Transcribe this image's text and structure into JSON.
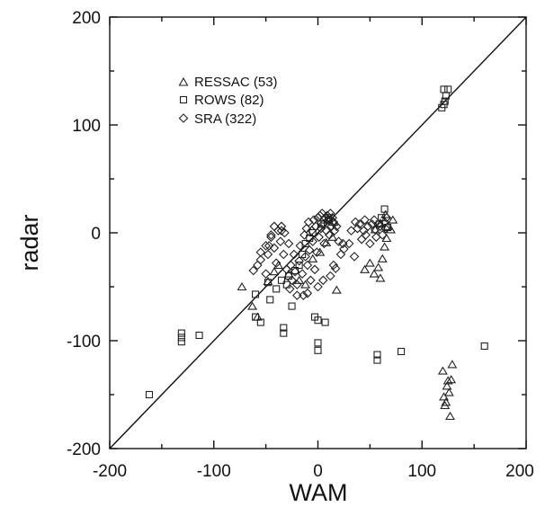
{
  "chart_data": {
    "type": "scatter",
    "title": "",
    "xlabel": "WAM",
    "ylabel": "radar",
    "xlim": [
      -200,
      200
    ],
    "ylim": [
      -200,
      200
    ],
    "xticks": [
      -200,
      -100,
      0,
      100,
      200
    ],
    "yticks": [
      -200,
      -100,
      0,
      100,
      200
    ],
    "x_tick_labels": [
      "-200",
      "-100",
      "0",
      "100",
      "200"
    ],
    "y_tick_labels": [
      "-200",
      "-100",
      "0",
      "100",
      "200"
    ],
    "grid": false,
    "reference_line": "y = x",
    "legend_position": "top-left",
    "series": [
      {
        "name": "RESSAC (53)",
        "marker": "triangle",
        "points": [
          [
            -73,
            -50
          ],
          [
            -63,
            -68
          ],
          [
            -58,
            -78
          ],
          [
            -48,
            -45
          ],
          [
            -42,
            -36
          ],
          [
            -38,
            -30
          ],
          [
            -28,
            -38
          ],
          [
            -18,
            -44
          ],
          [
            -12,
            -48
          ],
          [
            -5,
            -24
          ],
          [
            2,
            -18
          ],
          [
            8,
            -9
          ],
          [
            14,
            -4
          ],
          [
            18,
            -53
          ],
          [
            45,
            -34
          ],
          [
            50,
            -28
          ],
          [
            54,
            -38
          ],
          [
            58,
            -32
          ],
          [
            60,
            -42
          ],
          [
            62,
            -24
          ],
          [
            64,
            -13
          ],
          [
            66,
            -5
          ],
          [
            67,
            6
          ],
          [
            70,
            3
          ],
          [
            72,
            12
          ],
          [
            65,
            17
          ],
          [
            60,
            9
          ],
          [
            55,
            3
          ],
          [
            15,
            10
          ],
          [
            10,
            12
          ],
          [
            120,
            -128
          ],
          [
            121,
            -152
          ],
          [
            122,
            -160
          ],
          [
            123,
            -157
          ],
          [
            124,
            -142
          ],
          [
            125,
            -137
          ],
          [
            126,
            -148
          ],
          [
            127,
            -170
          ],
          [
            128,
            -136
          ],
          [
            129,
            -122
          ]
        ]
      },
      {
        "name": "ROWS (82)",
        "marker": "square",
        "points": [
          [
            -162,
            -150
          ],
          [
            -131,
            -93
          ],
          [
            -131,
            -97
          ],
          [
            -131,
            -101
          ],
          [
            -114,
            -95
          ],
          [
            -60,
            -57
          ],
          [
            -60,
            -78
          ],
          [
            -55,
            -83
          ],
          [
            -48,
            -46
          ],
          [
            -46,
            -62
          ],
          [
            -40,
            -52
          ],
          [
            -35,
            -44
          ],
          [
            -33,
            -88
          ],
          [
            -33,
            -93
          ],
          [
            -30,
            -48
          ],
          [
            -28,
            -40
          ],
          [
            -25,
            -68
          ],
          [
            -22,
            -35
          ],
          [
            -18,
            -30
          ],
          [
            -15,
            -20
          ],
          [
            -12,
            -10
          ],
          [
            -8,
            -5
          ],
          [
            -5,
            0
          ],
          [
            -3,
            -78
          ],
          [
            0,
            -81
          ],
          [
            0,
            -102
          ],
          [
            0,
            -109
          ],
          [
            7,
            -83
          ],
          [
            3,
            8
          ],
          [
            6,
            12
          ],
          [
            10,
            14
          ],
          [
            57,
            -113
          ],
          [
            57,
            -118
          ],
          [
            80,
            -110
          ],
          [
            61,
            14
          ],
          [
            64,
            22
          ],
          [
            67,
            5
          ],
          [
            59,
            8
          ],
          [
            119,
            116
          ],
          [
            121,
            119
          ],
          [
            122,
            122
          ],
          [
            121,
            133
          ],
          [
            125,
            133
          ],
          [
            123,
            127
          ],
          [
            160,
            -105
          ]
        ]
      },
      {
        "name": "SRA (322)",
        "marker": "diamond",
        "points": [
          [
            -62,
            -35
          ],
          [
            -58,
            -30
          ],
          [
            -55,
            -25
          ],
          [
            -50,
            -38
          ],
          [
            -48,
            -20
          ],
          [
            -47,
            -12
          ],
          [
            -45,
            -4
          ],
          [
            -42,
            -14
          ],
          [
            -40,
            -28
          ],
          [
            -38,
            2
          ],
          [
            -36,
            -8
          ],
          [
            -35,
            6
          ],
          [
            -33,
            -20
          ],
          [
            -32,
            0
          ],
          [
            -30,
            -34
          ],
          [
            -28,
            -10
          ],
          [
            -26,
            -30
          ],
          [
            -25,
            -44
          ],
          [
            -23,
            -20
          ],
          [
            -22,
            -36
          ],
          [
            -20,
            -48
          ],
          [
            -18,
            -26
          ],
          [
            -17,
            -12
          ],
          [
            -15,
            -38
          ],
          [
            -14,
            -58
          ],
          [
            -13,
            -2
          ],
          [
            -12,
            -22
          ],
          [
            -11,
            4
          ],
          [
            -10,
            -30
          ],
          [
            -9,
            10
          ],
          [
            -8,
            -16
          ],
          [
            -7,
            -44
          ],
          [
            -6,
            2
          ],
          [
            -5,
            -8
          ],
          [
            -4,
            12
          ],
          [
            -3,
            -34
          ],
          [
            -2,
            6
          ],
          [
            -1,
            -18
          ],
          [
            0,
            14
          ],
          [
            1,
            -4
          ],
          [
            2,
            16
          ],
          [
            3,
            4
          ],
          [
            4,
            18
          ],
          [
            5,
            8
          ],
          [
            6,
            -10
          ],
          [
            7,
            14
          ],
          [
            8,
            2
          ],
          [
            9,
            16
          ],
          [
            10,
            12
          ],
          [
            11,
            -2
          ],
          [
            12,
            18
          ],
          [
            13,
            6
          ],
          [
            14,
            14
          ],
          [
            15,
            10
          ],
          [
            16,
            2
          ],
          [
            18,
            6
          ],
          [
            20,
            -8
          ],
          [
            22,
            -20
          ],
          [
            24,
            -10
          ],
          [
            25,
            -15
          ],
          [
            17,
            -33
          ],
          [
            15,
            -30
          ],
          [
            12,
            -40
          ],
          [
            30,
            -10
          ],
          [
            32,
            2
          ],
          [
            35,
            -22
          ],
          [
            36,
            10
          ],
          [
            38,
            4
          ],
          [
            40,
            8
          ],
          [
            42,
            -6
          ],
          [
            44,
            2
          ],
          [
            45,
            12
          ],
          [
            46,
            -2
          ],
          [
            48,
            6
          ],
          [
            50,
            -10
          ],
          [
            52,
            8
          ],
          [
            54,
            12
          ],
          [
            55,
            3
          ],
          [
            56,
            -4
          ],
          [
            58,
            8
          ],
          [
            60,
            6
          ],
          [
            62,
            -2
          ],
          [
            64,
            10
          ],
          [
            65,
            4
          ],
          [
            66,
            14
          ],
          [
            -27,
            -52
          ],
          [
            -20,
            -58
          ],
          [
            -10,
            -56
          ],
          [
            0,
            -50
          ],
          [
            5,
            -44
          ],
          [
            -35,
            2
          ],
          [
            -42,
            6
          ],
          [
            -45,
            -2
          ],
          [
            -50,
            -12
          ],
          [
            -55,
            -18
          ]
        ]
      }
    ]
  }
}
